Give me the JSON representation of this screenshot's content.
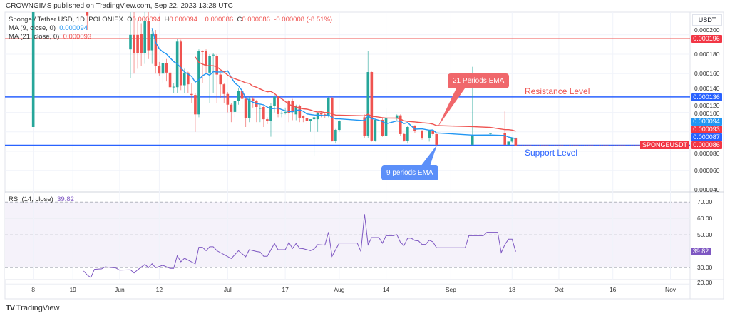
{
  "header": {
    "publisher": "CROWNGIMS published on TradingView.com, Sep 22, 2023 13:28 UTC"
  },
  "legend": {
    "symbol": "Sponge / Tether USD, 1D, POLONIEX",
    "open_label": "O",
    "open": "0.000094",
    "high_label": "H",
    "high": "0.000094",
    "low_label": "L",
    "low": "0.000086",
    "close_label": "C",
    "close": "0.000086",
    "change": "-0.000008 (-8.51%)",
    "ma9_label": "MA (9, close, 0)",
    "ma9_value": "0.000094",
    "ma21_label": "MA (21, close, 0)",
    "ma21_value": "0.000093",
    "rsi_label": "RSI (14, close)",
    "rsi_value": "39.82"
  },
  "axis": {
    "currency": "USDT",
    "price_ticks": [
      "0.000200",
      "0.000180",
      "0.000160",
      "0.000140",
      "0.000120",
      "0.000100",
      "0.000080",
      "0.000060",
      "0.000040"
    ],
    "rsi_ticks": [
      "70.00",
      "60.00",
      "50.00",
      "30.00",
      "20.00"
    ],
    "time_ticks": [
      "8",
      "19",
      "Jun",
      "12",
      "Jul",
      "17",
      "Aug",
      "14",
      "Sep",
      "18",
      "Oct",
      "16",
      "Nov"
    ]
  },
  "price_labels": {
    "top_line": "0.000196",
    "resistance": "0.000136",
    "ma9": "0.000094",
    "ma21": "0.000093",
    "support": "0.000087",
    "last": "0.000086",
    "symbol_tag": "SPONGEUSDT",
    "rsi_last": "39.82"
  },
  "annotations": {
    "ema21": "21 Periods EMA",
    "ema9": "9 periods EMA",
    "resistance": "Resistance Level",
    "support": "Support Level"
  },
  "footer": {
    "brand": "TradingView"
  },
  "colors": {
    "up": "#26a69a",
    "down": "#ef5350",
    "ma9": "#2196f3",
    "ma21": "#ef5350",
    "level": "#2962ff",
    "top_line": "#ef5350",
    "rsi": "#7e57c2"
  },
  "chart_data": {
    "type": "candlestick",
    "title": "Sponge / Tether USD, 1D, POLONIEX",
    "day0": "2023-06-04",
    "price_scale": 1e-06,
    "ylim": [
      34,
      222
    ],
    "levels": {
      "top_line": 196,
      "resistance": 136,
      "support": 87
    },
    "candles_fields": [
      "day_offset",
      "open",
      "high",
      "low",
      "close"
    ],
    "candles": [
      [
        -27,
        105,
        300,
        105,
        300
      ],
      [
        -12,
        230,
        240,
        205,
        220
      ],
      [
        0,
        185,
        230,
        155,
        200
      ],
      [
        1,
        200,
        228,
        160,
        181
      ],
      [
        2,
        200,
        215,
        165,
        181
      ],
      [
        3,
        201,
        212,
        168,
        181
      ],
      [
        4,
        181,
        225,
        170,
        214
      ],
      [
        5,
        214,
        230,
        175,
        184
      ],
      [
        6,
        184,
        205,
        170,
        201
      ],
      [
        7,
        201,
        205,
        160,
        168
      ],
      [
        8,
        168,
        172,
        158,
        160
      ],
      [
        9,
        160,
        175,
        150,
        171
      ],
      [
        10,
        171,
        175,
        152,
        161
      ],
      [
        11,
        161,
        165,
        143,
        146
      ],
      [
        12,
        146,
        150,
        140,
        146.5
      ],
      [
        13,
        146,
        196,
        140,
        193
      ],
      [
        14,
        193,
        195,
        143,
        148
      ],
      [
        15,
        148,
        165,
        140,
        161
      ],
      [
        16,
        161,
        162,
        140,
        149
      ],
      [
        17,
        139,
        150,
        130,
        138
      ],
      [
        18,
        138,
        140,
        100,
        118
      ],
      [
        19,
        118,
        185,
        115,
        183
      ],
      [
        20,
        183,
        184,
        150,
        182.5
      ],
      [
        21,
        183,
        185,
        160,
        168
      ],
      [
        22,
        161,
        180,
        130,
        178
      ],
      [
        23,
        179,
        181,
        140,
        179.5
      ],
      [
        24,
        178,
        180,
        130,
        159
      ],
      [
        25,
        159,
        160,
        135,
        149
      ],
      [
        26,
        149,
        150,
        130,
        139
      ],
      [
        27,
        139,
        141,
        120,
        128
      ],
      [
        28,
        128,
        130,
        110,
        120.5
      ],
      [
        29,
        120.5,
        132,
        115,
        131.5
      ],
      [
        30,
        131.5,
        145,
        128,
        142
      ],
      [
        31,
        142,
        143,
        125,
        134
      ],
      [
        32,
        134,
        135,
        105,
        114
      ],
      [
        33,
        114,
        136,
        110,
        134
      ],
      [
        34,
        134,
        136,
        125,
        131.5
      ],
      [
        35,
        131.5,
        133,
        110,
        125.6
      ],
      [
        36,
        124,
        128,
        110,
        124.5
      ],
      [
        37,
        125.6,
        127,
        105,
        113
      ],
      [
        38,
        113,
        115,
        108,
        111
      ],
      [
        39,
        111,
        130,
        95,
        127
      ],
      [
        40,
        127,
        138,
        120,
        136
      ],
      [
        41,
        136,
        137,
        115,
        118.3
      ],
      [
        42,
        119,
        122,
        115,
        119.5
      ],
      [
        43,
        120,
        125,
        118,
        120.5
      ],
      [
        44,
        131.5,
        133,
        110,
        119.7
      ],
      [
        45,
        131.5,
        134,
        112,
        120.5
      ],
      [
        46,
        118,
        128,
        112,
        127
      ],
      [
        47,
        127,
        128,
        110,
        114.6
      ],
      [
        48,
        116,
        117,
        110,
        114.6
      ],
      [
        49,
        114,
        115,
        108,
        111.6
      ],
      [
        50,
        111,
        113,
        100,
        113
      ],
      [
        51,
        113,
        118,
        75.6,
        115
      ],
      [
        52,
        113,
        120,
        100,
        119
      ],
      [
        53,
        119,
        120,
        115,
        118
      ],
      [
        54,
        118,
        119,
        114,
        117
      ],
      [
        55,
        116,
        136,
        115,
        135.2
      ],
      [
        56,
        135.2,
        136,
        90,
        90.3
      ],
      [
        57,
        90.3,
        103,
        88,
        102.1
      ],
      [
        58,
        102,
        112,
        100,
        111
      ],
      [
        65,
        115,
        118,
        94,
        96.2
      ],
      [
        66,
        96.2,
        183,
        94,
        161.6
      ],
      [
        67,
        161.6,
        162,
        90,
        91.1
      ],
      [
        68,
        91.1,
        113,
        90,
        112.4
      ],
      [
        70,
        112.4,
        114,
        95,
        96.2
      ],
      [
        71,
        96.2,
        124,
        95,
        113.9
      ],
      [
        74,
        114,
        118,
        112,
        117
      ],
      [
        75,
        117,
        118,
        96,
        97.7
      ],
      [
        76,
        97.7,
        99,
        90,
        91.1
      ],
      [
        77,
        91,
        106,
        88,
        105
      ],
      [
        79,
        105.8,
        107,
        99,
        100.6
      ],
      [
        81,
        100.6,
        102,
        92,
        94
      ],
      [
        83,
        94,
        101,
        90,
        100.6
      ],
      [
        84,
        100.6,
        101,
        96,
        97.7
      ],
      [
        85,
        97.7,
        98,
        85,
        86.7
      ],
      [
        95,
        86.7,
        167,
        86,
        96.9
      ],
      [
        100,
        98.4,
        99,
        97,
        98.6
      ],
      [
        104,
        98.4,
        121,
        86,
        86.7
      ],
      [
        105,
        86.7,
        90,
        86,
        90
      ],
      [
        106,
        90,
        94,
        89,
        94
      ],
      [
        107,
        94,
        94,
        86,
        86
      ]
    ],
    "ma_periods": [
      9,
      21
    ],
    "rsi": {
      "period": 14,
      "ylim": [
        16,
        74
      ],
      "bands": [
        30,
        50,
        70
      ],
      "points": [
        [
          -13,
          28
        ],
        [
          -12,
          25.5
        ],
        [
          -11,
          24
        ],
        [
          -10,
          29
        ],
        [
          -8,
          29.3
        ],
        [
          -7,
          30.5
        ],
        [
          -4,
          29.8
        ],
        [
          -3,
          28.5
        ],
        [
          0,
          28.7
        ],
        [
          1,
          26.8
        ],
        [
          2,
          28.7
        ],
        [
          4,
          32
        ],
        [
          5,
          30
        ],
        [
          6,
          32.4
        ],
        [
          7,
          30
        ],
        [
          9,
          31.5
        ],
        [
          11,
          29.6
        ],
        [
          12,
          29.6
        ],
        [
          13,
          37.3
        ],
        [
          14,
          33.6
        ],
        [
          15,
          35.8
        ],
        [
          18,
          32.4
        ],
        [
          19,
          42.5
        ],
        [
          20,
          42.5
        ],
        [
          21,
          40.4
        ],
        [
          22,
          42.8
        ],
        [
          23,
          42.8
        ],
        [
          24,
          40.4
        ],
        [
          28,
          35.6
        ],
        [
          30,
          40.4
        ],
        [
          32,
          36.7
        ],
        [
          33,
          41
        ],
        [
          35,
          39.9
        ],
        [
          36,
          39.6
        ],
        [
          37,
          37
        ],
        [
          38,
          37
        ],
        [
          40,
          44.8
        ],
        [
          41,
          41
        ],
        [
          43,
          41
        ],
        [
          44,
          45.4
        ],
        [
          45,
          41.8
        ],
        [
          46,
          44.8
        ],
        [
          47,
          41.8
        ],
        [
          48,
          41.6
        ],
        [
          50,
          40.4
        ],
        [
          51,
          41.5
        ],
        [
          52,
          44.1
        ],
        [
          54,
          43.8
        ],
        [
          55,
          51.7
        ],
        [
          56,
          37
        ],
        [
          57,
          41
        ],
        [
          58,
          45.1
        ],
        [
          63,
          45.1
        ],
        [
          64,
          39.9
        ],
        [
          65,
          62.6
        ],
        [
          66,
          44.1
        ],
        [
          67,
          48.4
        ],
        [
          69,
          48.4
        ],
        [
          70,
          45
        ],
        [
          71,
          49.5
        ],
        [
          73,
          49.5
        ],
        [
          74,
          50.2
        ],
        [
          75,
          45.4
        ],
        [
          76,
          43.6
        ],
        [
          77,
          48
        ],
        [
          78,
          48
        ],
        [
          79,
          46.6
        ],
        [
          80,
          46.4
        ],
        [
          81,
          44.2
        ],
        [
          82,
          44.2
        ],
        [
          83,
          46.8
        ],
        [
          84,
          45.8
        ],
        [
          85,
          42.2
        ],
        [
          93,
          42.2
        ],
        [
          94,
          49.5
        ],
        [
          98,
          49.5
        ],
        [
          99,
          51.6
        ],
        [
          102,
          51.6
        ],
        [
          103,
          39.2
        ],
        [
          104,
          44.1
        ],
        [
          105,
          47.4
        ],
        [
          106,
          47.4
        ],
        [
          107,
          39.82
        ]
      ]
    },
    "time_tick_days": [
      -27,
      -16,
      -3,
      8,
      27,
      43,
      58,
      71,
      89,
      106,
      119,
      134,
      150
    ]
  }
}
